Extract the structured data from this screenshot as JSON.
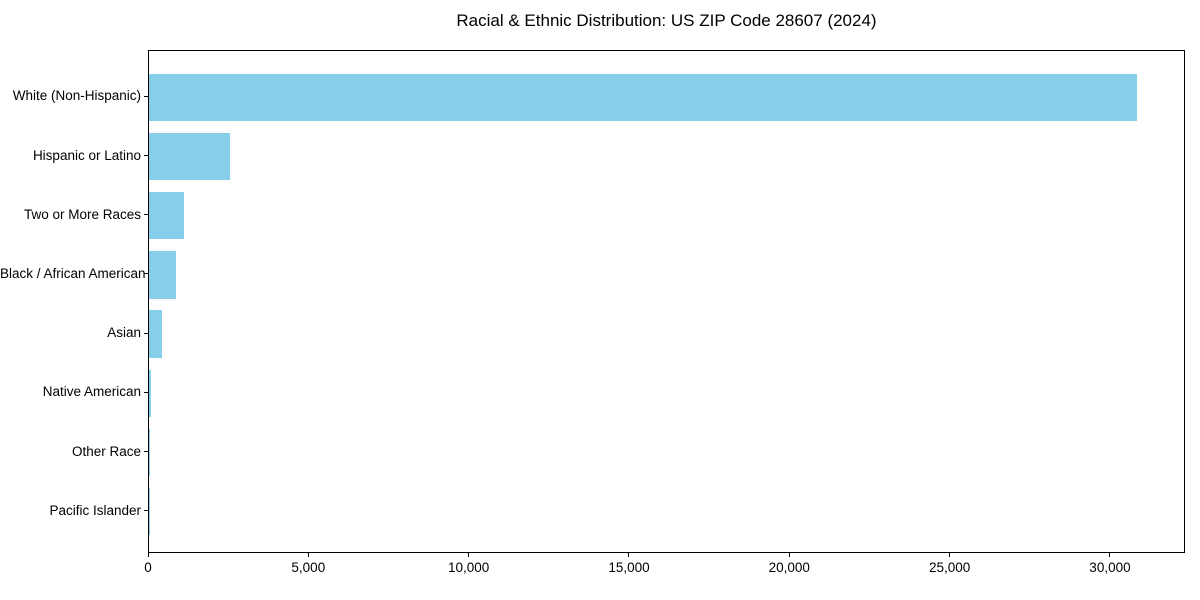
{
  "chart_data": {
    "type": "bar",
    "orientation": "horizontal",
    "title": "Racial & Ethnic Distribution: US ZIP Code 28607 (2024)",
    "xlabel": "",
    "ylabel": "",
    "categories": [
      "White (Non-Hispanic)",
      "Hispanic or Latino",
      "Two or More Races",
      "Black / African American",
      "Asian",
      "Native American",
      "Other Race",
      "Pacific Islander"
    ],
    "values": [
      30800,
      2530,
      1100,
      840,
      410,
      55,
      35,
      10
    ],
    "xlim": [
      0,
      32340
    ],
    "x_ticks": [
      0,
      5000,
      10000,
      15000,
      20000,
      25000,
      30000
    ],
    "x_tick_labels": [
      "0",
      "5,000",
      "10,000",
      "15,000",
      "20,000",
      "25,000",
      "30,000"
    ],
    "bar_color": "#87ceeb",
    "text_color": "#000000",
    "grid": false,
    "legend": null
  }
}
